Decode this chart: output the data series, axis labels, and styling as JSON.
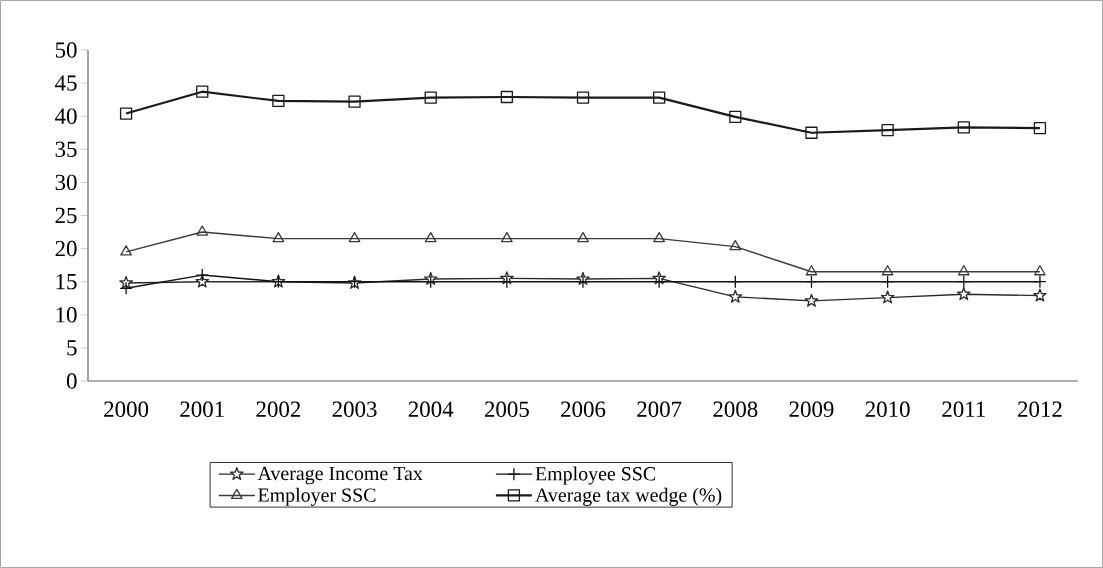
{
  "chart_data": {
    "type": "line",
    "categories": [
      "2000",
      "2001",
      "2002",
      "2003",
      "2004",
      "2005",
      "2006",
      "2007",
      "2008",
      "2009",
      "2010",
      "2011",
      "2012"
    ],
    "series": [
      {
        "name": "Average Income Tax",
        "color": "#2b2b2b",
        "marker": "star",
        "values": [
          14.8,
          15.0,
          15.0,
          14.8,
          15.4,
          15.5,
          15.4,
          15.5,
          12.7,
          12.1,
          12.6,
          13.1,
          12.9
        ]
      },
      {
        "name": "Employee SSC",
        "color": "#111111",
        "marker": "cross",
        "values": [
          14.0,
          16.0,
          15.0,
          15.0,
          15.0,
          15.0,
          15.0,
          15.0,
          15.0,
          15.0,
          15.0,
          15.0,
          15.0
        ]
      },
      {
        "name": "Employer SSC",
        "color": "#3a3a3a",
        "marker": "triangle",
        "values": [
          19.5,
          22.5,
          21.5,
          21.5,
          21.5,
          21.5,
          21.5,
          21.5,
          20.3,
          16.5,
          16.5,
          16.5,
          16.5
        ]
      },
      {
        "name": "Average tax wedge (%)",
        "color": "#1a1a1a",
        "marker": "square",
        "values": [
          40.4,
          43.7,
          42.3,
          42.2,
          42.8,
          42.9,
          42.8,
          42.8,
          39.9,
          37.5,
          37.9,
          38.3,
          38.2
        ]
      }
    ],
    "ylim": [
      0,
      50
    ],
    "yticks": [
      0,
      5,
      10,
      15,
      20,
      25,
      30,
      35,
      40,
      45,
      50
    ],
    "grid": false,
    "legend": "bottom",
    "line_style": "solid"
  }
}
